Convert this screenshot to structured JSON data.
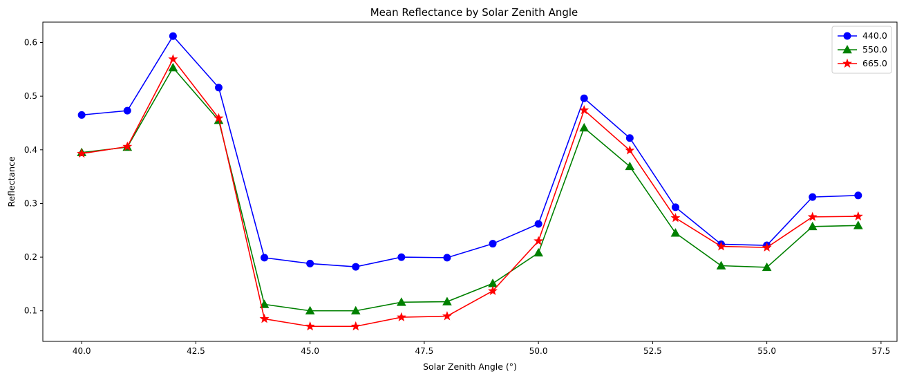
{
  "chart_data": {
    "type": "line",
    "title": "Mean Reflectance by Solar Zenith Angle",
    "xlabel": "Solar Zenith Angle (°)",
    "ylabel": "Reflectance",
    "xlim": [
      39.15,
      57.85
    ],
    "ylim": [
      0.043,
      0.638
    ],
    "xticks": [
      40.0,
      42.5,
      45.0,
      47.5,
      50.0,
      52.5,
      55.0,
      57.5
    ],
    "xtick_labels": [
      "40.0",
      "42.5",
      "45.0",
      "47.5",
      "50.0",
      "52.5",
      "55.0",
      "57.5"
    ],
    "yticks": [
      0.1,
      0.2,
      0.3,
      0.4,
      0.5,
      0.6
    ],
    "ytick_labels": [
      "0.1",
      "0.2",
      "0.3",
      "0.4",
      "0.5",
      "0.6"
    ],
    "grid": false,
    "legend_position": "top-right",
    "x": [
      40,
      41,
      42,
      43,
      44,
      45,
      46,
      47,
      48,
      49,
      50,
      51,
      52,
      53,
      54,
      55,
      56,
      57
    ],
    "series": [
      {
        "name": "440.0",
        "color": "#0000ff",
        "marker": "circle",
        "values": [
          0.465,
          0.473,
          0.612,
          0.516,
          0.199,
          0.188,
          0.182,
          0.2,
          0.199,
          0.225,
          0.262,
          0.496,
          0.422,
          0.293,
          0.224,
          0.222,
          0.312,
          0.315
        ]
      },
      {
        "name": "550.0",
        "color": "#008000",
        "marker": "triangle",
        "values": [
          0.395,
          0.405,
          0.553,
          0.455,
          0.112,
          0.1,
          0.1,
          0.116,
          0.117,
          0.151,
          0.208,
          0.441,
          0.369,
          0.245,
          0.184,
          0.181,
          0.257,
          0.259
        ]
      },
      {
        "name": "665.0",
        "color": "#ff0000",
        "marker": "star",
        "values": [
          0.393,
          0.406,
          0.569,
          0.459,
          0.085,
          0.071,
          0.071,
          0.088,
          0.09,
          0.137,
          0.23,
          0.474,
          0.399,
          0.273,
          0.22,
          0.218,
          0.275,
          0.276
        ]
      }
    ]
  }
}
